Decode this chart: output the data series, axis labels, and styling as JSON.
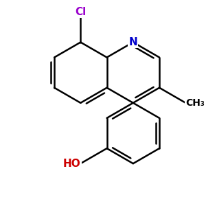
{
  "background_color": "#ffffff",
  "bond_color": "#000000",
  "N_color": "#0000cc",
  "Cl_color": "#9900cc",
  "O_color": "#cc0000",
  "line_width": 1.8,
  "dbo": 0.018,
  "shorten": 0.025,
  "bl": 0.16,
  "fig_size": [
    3.0,
    3.0
  ],
  "dpi": 100,
  "xlim": [
    0.0,
    1.0
  ],
  "ylim": [
    0.0,
    1.0
  ]
}
